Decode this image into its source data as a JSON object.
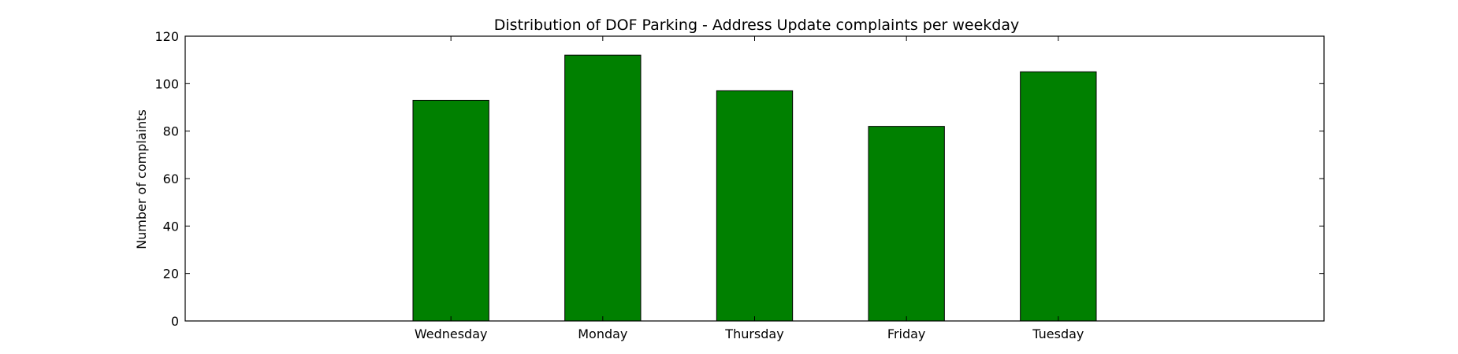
{
  "chart_data": {
    "type": "bar",
    "title": "Distribution of  DOF Parking - Address Update complaints per weekday",
    "xlabel": "",
    "ylabel": "Number of complaints",
    "categories": [
      "Wednesday",
      "Monday",
      "Thursday",
      "Friday",
      "Tuesday"
    ],
    "values": [
      93,
      112,
      97,
      82,
      105
    ],
    "ylim": [
      0,
      120
    ],
    "yticks": [
      0,
      20,
      40,
      60,
      80,
      100,
      120
    ],
    "bar_color": "#008000",
    "grid": false,
    "legend": "none"
  }
}
